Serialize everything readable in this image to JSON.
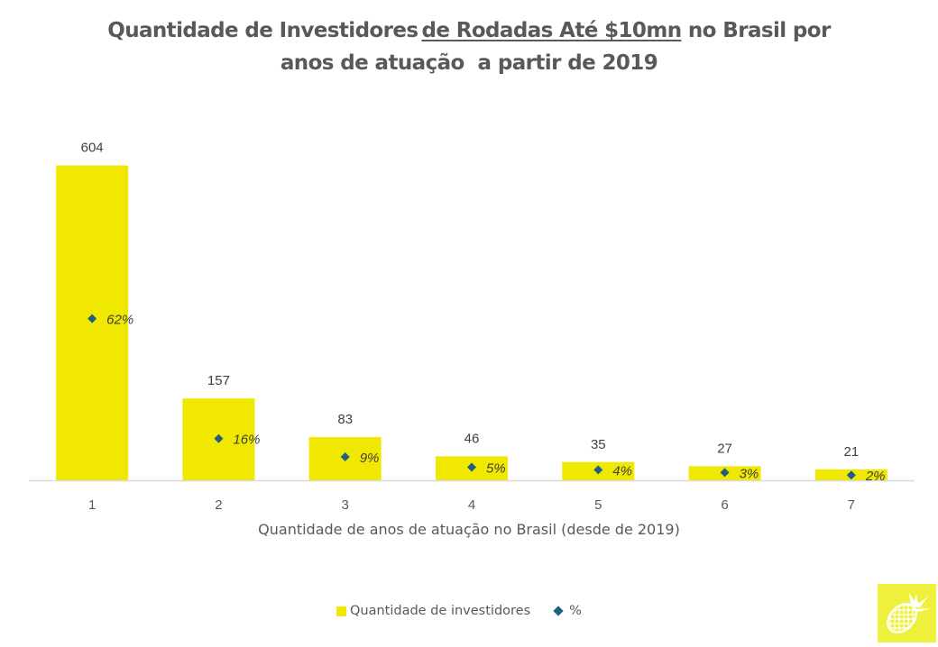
{
  "title": {
    "part1": "Quantidade de Investidores",
    "underlined": "de Rodadas Até $10mn",
    "part2": "no Brasil por",
    "line2": "anos de atuação  a partir de 2019"
  },
  "legend": {
    "bars": "Quantidade de investidores",
    "points": "%"
  },
  "colors": {
    "bar": "#f0e800",
    "marker": "#1f5f80",
    "text": "#595959",
    "axis": "#d9d9d9",
    "logo_bg": "#eef03c"
  },
  "logo": {
    "icon": "pineapple-icon"
  },
  "chart_data": {
    "type": "bar",
    "title": "Quantidade de Investidores de Rodadas Até $10mn no Brasil por anos de atuação  a partir de 2019",
    "xlabel": "Quantidade de anos de atuação no Brasil (desde de 2019)",
    "ylabel": "",
    "categories": [
      "1",
      "2",
      "3",
      "4",
      "5",
      "6",
      "7"
    ],
    "series": [
      {
        "name": "Quantidade de investidores",
        "type": "bar",
        "values": [
          604,
          157,
          83,
          46,
          35,
          27,
          21
        ],
        "labels": [
          "604",
          "157",
          "83",
          "46",
          "35",
          "27",
          "21"
        ]
      },
      {
        "name": "%",
        "type": "scatter",
        "axis": "secondary",
        "values": [
          62,
          16,
          9,
          5,
          4,
          3,
          2
        ],
        "labels": [
          "62%",
          "16%",
          "9%",
          "5%",
          "4%",
          "3%",
          "2%"
        ]
      }
    ],
    "ylim": [
      0,
      700
    ],
    "y2lim": [
      0,
      140
    ],
    "grid": false,
    "legend_position": "bottom"
  }
}
